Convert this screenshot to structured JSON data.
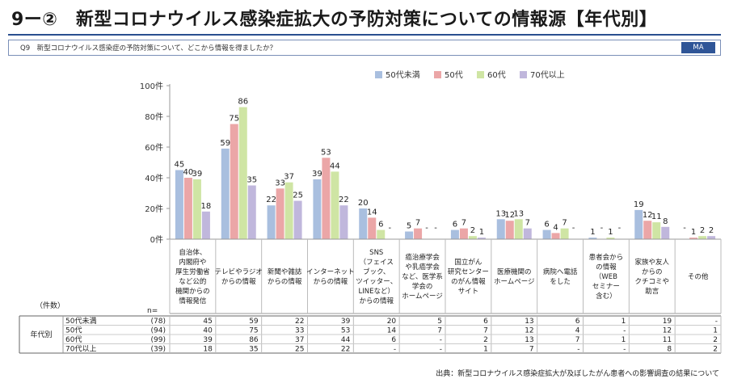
{
  "header": {
    "title": "9ー②　新型コロナウイルス感染症拡大の予防対策についての情報源【年代別】",
    "question": "Q9　新型コロナウイルス感染症の予防対策について、どこから情報を得ましたか？",
    "badge": "MA"
  },
  "table": {
    "count_unit": "（件数）",
    "n_label": "n=",
    "group_label": "年代別"
  },
  "source": "出典：新型コロナウイルス感染症拡大が及ぼしたがん患者への影響調査の結果について",
  "chart_data": {
    "type": "bar",
    "title": "",
    "xlabel": "",
    "ylabel": "",
    "ylim": [
      0,
      100
    ],
    "y_ticks": [
      "0件",
      "20件",
      "40件",
      "60件",
      "80件",
      "100件"
    ],
    "legend_position": "top-right",
    "grid": false,
    "categories": [
      "自治体、\n内閣府や\n厚生労働省\nなど公的\n機関からの\n情報発信",
      "テレビやラジオ\nからの情報",
      "新聞や雑誌\nからの情報",
      "インターネット\nからの情報",
      "SNS\n（フェイス\nブック、\nツイッター、\nLINEなど）\nからの情報",
      "癌治療学会\nや乳癌学会\nなど、医学系\n学会の\nホームページ",
      "国立がん\n研究センター\nのがん情報\nサイト",
      "医療機関の\nホームページ",
      "病院へ電話\nをした",
      "患者会から\nの情報\n（WEB\nセミナー\n含む）",
      "家族や友人\nからの\nクチコミや\n助言",
      "その他"
    ],
    "series": [
      {
        "name": "50代未満",
        "n": "(78)",
        "row_label": "50代未満",
        "color": "#a9bfdf",
        "values": [
          45,
          59,
          22,
          39,
          20,
          5,
          6,
          13,
          6,
          1,
          19,
          null
        ]
      },
      {
        "name": "50代",
        "n": "(94)",
        "row_label": "50代",
        "color": "#eba6a7",
        "values": [
          40,
          75,
          33,
          53,
          14,
          7,
          7,
          12,
          4,
          null,
          12,
          1
        ]
      },
      {
        "name": "60代",
        "n": "(99)",
        "row_label": "60代",
        "color": "#cfe5a4",
        "values": [
          39,
          86,
          37,
          44,
          6,
          null,
          2,
          13,
          7,
          1,
          11,
          2
        ]
      },
      {
        "name": "70代以上",
        "n": "(39)",
        "row_label": "70代以上",
        "color": "#c0b7dc",
        "values": [
          18,
          35,
          25,
          22,
          null,
          null,
          1,
          7,
          null,
          null,
          8,
          2
        ]
      }
    ],
    "missing_label": "-"
  }
}
